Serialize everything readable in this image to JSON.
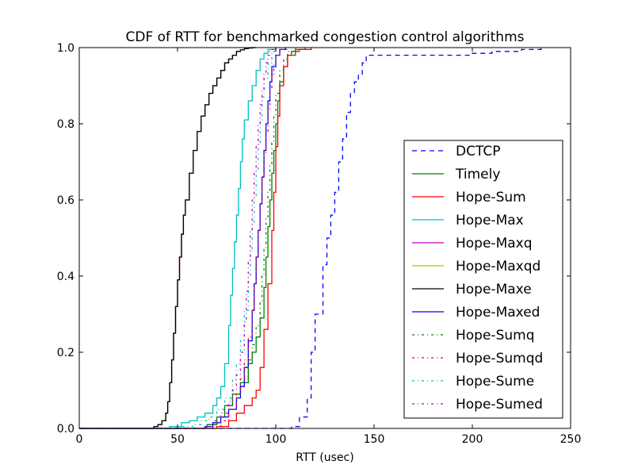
{
  "chart_data": {
    "type": "line",
    "title": "CDF of RTT for benchmarked congestion control algorithms",
    "xlabel": "RTT (usec)",
    "ylabel": "",
    "xlim": [
      0,
      250
    ],
    "ylim": [
      0,
      1.0
    ],
    "x_ticks": [
      "0",
      "50",
      "100",
      "150",
      "200",
      "250"
    ],
    "y_ticks": [
      "0.0",
      "0.2",
      "0.4",
      "0.6",
      "0.8",
      "1.0"
    ],
    "grid": false,
    "legend_placement": "right",
    "series": [
      {
        "name": "DCTCP",
        "color": "#0000ff",
        "dash": "6,5",
        "x": [
          0,
          100,
          108,
          112,
          116,
          118,
          120,
          124,
          126,
          128,
          130,
          132,
          134,
          136,
          138,
          140,
          142,
          144,
          146,
          148,
          160,
          200,
          210,
          225,
          235
        ],
        "y": [
          0,
          0,
          0.005,
          0.03,
          0.08,
          0.2,
          0.3,
          0.43,
          0.5,
          0.56,
          0.62,
          0.7,
          0.76,
          0.83,
          0.88,
          0.91,
          0.93,
          0.96,
          0.98,
          0.98,
          0.98,
          0.985,
          0.99,
          0.995,
          1.0
        ]
      },
      {
        "name": "Timely",
        "color": "#008000",
        "dash": "",
        "x": [
          0,
          58,
          65,
          70,
          74,
          78,
          82,
          86,
          88,
          90,
          92,
          94,
          95,
          96,
          97,
          98,
          99,
          100,
          101,
          102,
          104,
          106,
          110,
          115
        ],
        "y": [
          0,
          0,
          0.01,
          0.03,
          0.06,
          0.09,
          0.12,
          0.17,
          0.2,
          0.24,
          0.29,
          0.37,
          0.45,
          0.53,
          0.6,
          0.67,
          0.73,
          0.8,
          0.86,
          0.91,
          0.95,
          0.98,
          0.995,
          1.0
        ]
      },
      {
        "name": "Hope-Sum",
        "color": "#ff0000",
        "dash": "",
        "x": [
          0,
          60,
          70,
          76,
          80,
          84,
          88,
          90,
          92,
          94,
          96,
          98,
          99,
          100,
          101,
          102,
          104,
          106,
          108,
          112,
          118
        ],
        "y": [
          0,
          0,
          0.005,
          0.02,
          0.04,
          0.06,
          0.08,
          0.1,
          0.16,
          0.26,
          0.38,
          0.52,
          0.62,
          0.74,
          0.82,
          0.9,
          0.95,
          0.98,
          0.99,
          0.995,
          1.0
        ]
      },
      {
        "name": "Hope-Max",
        "color": "#00bfbf",
        "dash": "",
        "x": [
          0,
          40,
          46,
          52,
          56,
          60,
          64,
          68,
          70,
          72,
          74,
          76,
          77,
          78,
          79,
          80,
          81,
          82,
          83,
          84,
          86,
          88,
          90,
          92,
          94,
          96,
          100
        ],
        "y": [
          0,
          0,
          0.005,
          0.015,
          0.02,
          0.03,
          0.04,
          0.06,
          0.08,
          0.11,
          0.17,
          0.27,
          0.35,
          0.42,
          0.49,
          0.56,
          0.63,
          0.7,
          0.76,
          0.81,
          0.86,
          0.9,
          0.94,
          0.97,
          0.985,
          0.995,
          1.0
        ]
      },
      {
        "name": "Hope-Maxq",
        "color": "#bf00bf",
        "dash": "",
        "x": [
          0,
          34,
          38,
          40,
          42,
          44,
          45,
          46,
          47,
          48,
          49,
          50,
          51,
          52,
          53,
          54,
          56,
          58,
          60,
          62,
          64,
          66,
          68,
          70,
          72,
          74,
          76,
          78,
          80,
          82,
          84,
          86,
          88,
          90
        ],
        "y": [
          0,
          0,
          0.005,
          0.01,
          0.02,
          0.04,
          0.07,
          0.12,
          0.18,
          0.25,
          0.32,
          0.39,
          0.45,
          0.51,
          0.56,
          0.6,
          0.67,
          0.73,
          0.78,
          0.82,
          0.85,
          0.88,
          0.9,
          0.92,
          0.94,
          0.96,
          0.97,
          0.98,
          0.99,
          0.994,
          0.997,
          0.999,
          1.0,
          1.0
        ]
      },
      {
        "name": "Hope-Maxqd",
        "color": "#bfbf00",
        "dash": "",
        "x": [
          0,
          34,
          38,
          40,
          42,
          44,
          45,
          46,
          47,
          48,
          49,
          50,
          51,
          52,
          53,
          54,
          56,
          58,
          60,
          62,
          64,
          66,
          68,
          70,
          72,
          74,
          76,
          78,
          80,
          82,
          84,
          86,
          88,
          90
        ],
        "y": [
          0,
          0,
          0.005,
          0.01,
          0.02,
          0.04,
          0.07,
          0.12,
          0.18,
          0.25,
          0.32,
          0.39,
          0.45,
          0.51,
          0.56,
          0.6,
          0.67,
          0.73,
          0.78,
          0.82,
          0.85,
          0.88,
          0.9,
          0.92,
          0.94,
          0.96,
          0.97,
          0.98,
          0.99,
          0.994,
          0.997,
          0.999,
          1.0,
          1.0
        ]
      },
      {
        "name": "Hope-Maxe",
        "color": "#000000",
        "dash": "",
        "x": [
          0,
          34,
          38,
          40,
          42,
          44,
          45,
          46,
          47,
          48,
          49,
          50,
          51,
          52,
          53,
          54,
          56,
          58,
          60,
          62,
          64,
          66,
          68,
          70,
          72,
          74,
          76,
          78,
          80,
          82,
          84,
          86,
          88,
          90
        ],
        "y": [
          0,
          0,
          0.005,
          0.01,
          0.02,
          0.04,
          0.07,
          0.12,
          0.18,
          0.25,
          0.32,
          0.39,
          0.45,
          0.51,
          0.56,
          0.6,
          0.67,
          0.73,
          0.78,
          0.82,
          0.85,
          0.88,
          0.9,
          0.92,
          0.94,
          0.96,
          0.97,
          0.98,
          0.99,
          0.994,
          0.997,
          0.999,
          1.0,
          1.0
        ]
      },
      {
        "name": "Hope-Maxed",
        "color": "#0000ff",
        "dash": "",
        "x": [
          0,
          58,
          64,
          68,
          72,
          76,
          80,
          82,
          84,
          86,
          88,
          89,
          90,
          91,
          92,
          93,
          94,
          95,
          96,
          97,
          98,
          100,
          102,
          105
        ],
        "y": [
          0,
          0,
          0.005,
          0.015,
          0.03,
          0.05,
          0.08,
          0.11,
          0.16,
          0.23,
          0.31,
          0.38,
          0.45,
          0.52,
          0.59,
          0.66,
          0.73,
          0.8,
          0.86,
          0.91,
          0.95,
          0.98,
          0.995,
          1.0
        ]
      },
      {
        "name": "Hope-Sumq",
        "color": "#008000",
        "dash": "3,4,1,4",
        "x": [
          0,
          60,
          66,
          70,
          74,
          78,
          82,
          86,
          88,
          90,
          92,
          93,
          94,
          95,
          96,
          97,
          98,
          99,
          100,
          102,
          104,
          106,
          110
        ],
        "y": [
          0,
          0,
          0.01,
          0.03,
          0.06,
          0.09,
          0.13,
          0.18,
          0.22,
          0.27,
          0.33,
          0.4,
          0.47,
          0.55,
          0.62,
          0.69,
          0.75,
          0.82,
          0.88,
          0.94,
          0.97,
          0.99,
          1.0
        ]
      },
      {
        "name": "Hope-Sumqd",
        "color": "#ff0000",
        "dash": "3,4,1,4",
        "x": [
          0,
          62,
          68,
          72,
          76,
          80,
          82,
          84,
          86,
          88,
          89,
          90,
          91,
          92,
          93,
          94,
          95,
          96,
          97,
          98,
          99,
          100,
          102,
          106
        ],
        "y": [
          0,
          0,
          0.005,
          0.02,
          0.05,
          0.09,
          0.13,
          0.18,
          0.24,
          0.31,
          0.38,
          0.45,
          0.52,
          0.59,
          0.66,
          0.72,
          0.78,
          0.84,
          0.89,
          0.93,
          0.96,
          0.98,
          0.995,
          1.0
        ]
      },
      {
        "name": "Hope-Sume",
        "color": "#00bfbf",
        "dash": "3,4,1,4",
        "x": [
          0,
          46,
          52,
          58,
          62,
          66,
          70,
          74,
          78,
          80,
          82,
          84,
          86,
          87,
          88,
          89,
          90,
          91,
          92,
          93,
          94,
          96,
          98,
          100
        ],
        "y": [
          0,
          0,
          0.005,
          0.01,
          0.02,
          0.03,
          0.05,
          0.08,
          0.13,
          0.17,
          0.23,
          0.31,
          0.4,
          0.47,
          0.54,
          0.61,
          0.68,
          0.75,
          0.81,
          0.87,
          0.92,
          0.96,
          0.99,
          1.0
        ]
      },
      {
        "name": "Hope-Sumed",
        "color": "#bf00bf",
        "dash": "3,4,1,4",
        "x": [
          0,
          58,
          64,
          68,
          72,
          76,
          78,
          80,
          82,
          84,
          85,
          86,
          87,
          88,
          89,
          90,
          91,
          92,
          93,
          94,
          95,
          96,
          97,
          98,
          100
        ],
        "y": [
          0,
          0,
          0.005,
          0.02,
          0.04,
          0.07,
          0.1,
          0.14,
          0.2,
          0.28,
          0.36,
          0.44,
          0.52,
          0.6,
          0.67,
          0.74,
          0.8,
          0.85,
          0.89,
          0.93,
          0.96,
          0.98,
          0.99,
          0.995,
          1.0
        ]
      }
    ]
  }
}
